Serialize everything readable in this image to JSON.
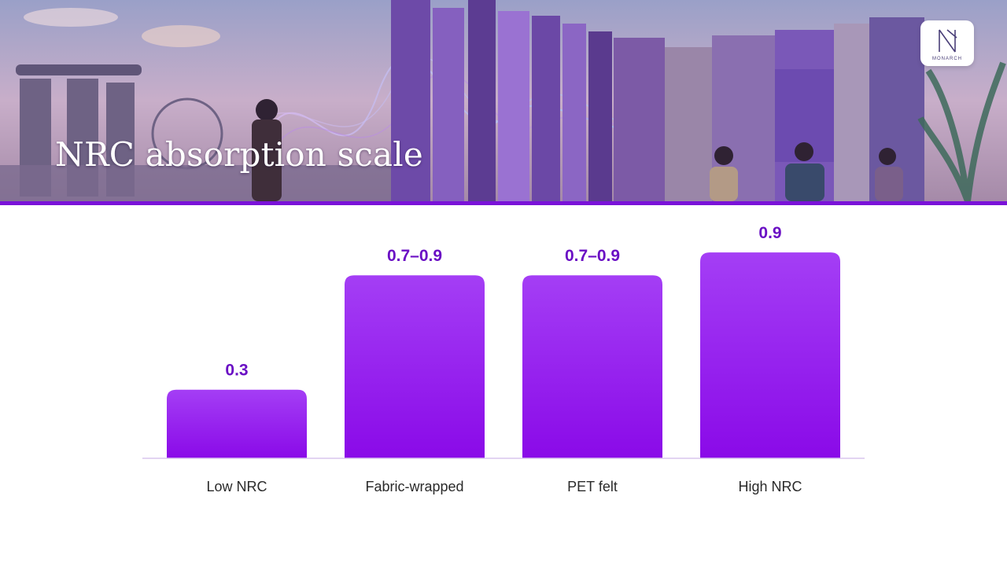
{
  "slide": {
    "title": "NRC absorption scale",
    "logo_text": "MONARCH"
  },
  "colors": {
    "accent": "#7a12d8",
    "bar_top": "#a43ef5",
    "bar_bottom": "#8a0ae8",
    "value_label": "#6a0fc4",
    "axis": "#d9c6ee"
  },
  "chart_data": {
    "type": "bar",
    "categories": [
      "Low NRC",
      "Fabric-wrapped",
      "PET felt",
      "High NRC"
    ],
    "values": [
      0.3,
      0.8,
      0.8,
      0.9
    ],
    "value_labels": [
      "0.3",
      "0.7–0.9",
      "0.7–0.9",
      "0.9"
    ],
    "title": "NRC absorption scale",
    "xlabel": "",
    "ylabel": "",
    "ylim": [
      0,
      1.0
    ],
    "grid": false,
    "legend": "none"
  }
}
